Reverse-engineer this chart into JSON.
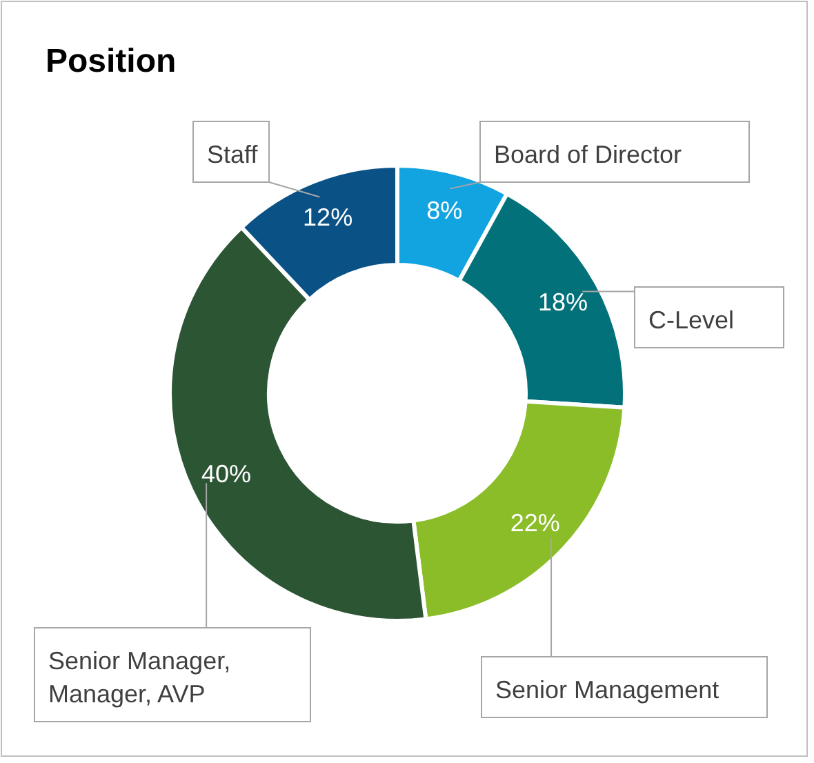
{
  "chart_data": {
    "type": "donut",
    "title": "Position",
    "categories": [
      "Board of Director",
      "C-Level",
      "Senior Management",
      "Senior Manager, Manager, AVP",
      "Staff"
    ],
    "values": [
      8,
      18,
      22,
      40,
      12
    ],
    "value_labels": [
      "8%",
      "18%",
      "22%",
      "40%",
      "12%"
    ],
    "colors": [
      "#12a3e1",
      "#02717a",
      "#8bbd29",
      "#2c5534",
      "#0a5185"
    ]
  }
}
